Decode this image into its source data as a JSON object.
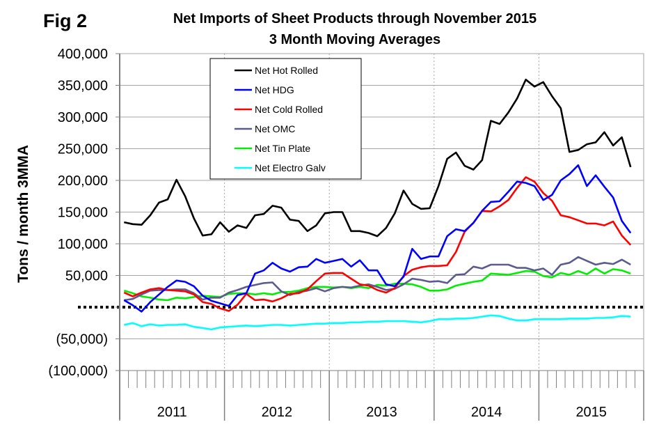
{
  "figure_label": "Fig 2",
  "chart_data": {
    "type": "line",
    "title": "Net Imports of Sheet Products through November 2015",
    "subtitle": "3 Month Moving Averages",
    "xlabel": "",
    "ylabel": "Tons / month 3MMA",
    "ylim": [
      -100000,
      400000
    ],
    "yticks": [
      400000,
      350000,
      300000,
      250000,
      200000,
      150000,
      100000,
      50000,
      0,
      -50000,
      -100000
    ],
    "ytick_labels": [
      "400,000",
      "350,000",
      "300,000",
      "250,000",
      "200,000",
      "150,000",
      "100,000",
      "50,000",
      "",
      "(50,000)",
      "(100,000)"
    ],
    "x_groups": [
      "2011",
      "2012",
      "2013",
      "2014",
      "2015"
    ],
    "x_start": "Jan 2011",
    "x_end": "Nov 2015",
    "months_per_group": 12,
    "grid": "horizontal solid, vertical dotted at year boundaries",
    "zero_line": "dotted",
    "legend_position": "top-left",
    "series": [
      {
        "name": "Net Hot Rolled",
        "color": "#000000",
        "values": [
          134000,
          131000,
          130000,
          145000,
          165000,
          170000,
          201000,
          175000,
          140000,
          113000,
          115000,
          134000,
          119000,
          129000,
          125000,
          145000,
          147000,
          160000,
          157000,
          138000,
          136000,
          120000,
          129000,
          148000,
          150000,
          150000,
          120000,
          120000,
          117000,
          112000,
          125000,
          148000,
          184000,
          163000,
          155000,
          156000,
          191000,
          234000,
          244000,
          223000,
          217000,
          232000,
          294000,
          289000,
          307000,
          329000,
          359000,
          348000,
          355000,
          333000,
          314000,
          245000,
          248000,
          257000,
          260000,
          276000,
          255000,
          268000,
          221000
        ]
      },
      {
        "name": "Net HDG",
        "color": "#0000ff",
        "values": [
          11000,
          3000,
          -7000,
          8000,
          20000,
          32000,
          42000,
          40000,
          33000,
          18000,
          10000,
          6000,
          2000,
          19000,
          22000,
          53000,
          58000,
          70000,
          61000,
          56000,
          63000,
          64000,
          76000,
          70000,
          73000,
          76000,
          64000,
          74000,
          58000,
          58000,
          36000,
          33000,
          48000,
          92000,
          76000,
          80000,
          80000,
          112000,
          123000,
          120000,
          133000,
          152000,
          166000,
          167000,
          182000,
          198000,
          196000,
          191000,
          169000,
          177000,
          200000,
          210000,
          224000,
          191000,
          208000,
          190000,
          173000,
          136000,
          117000
        ]
      },
      {
        "name": "Net Cold Rolled",
        "color": "#ff0000",
        "values": [
          23000,
          17000,
          23000,
          28000,
          30000,
          27000,
          26000,
          25000,
          20000,
          8000,
          5000,
          -2000,
          -6000,
          4000,
          21000,
          11000,
          12000,
          9000,
          14000,
          21000,
          22000,
          28000,
          41000,
          53000,
          54000,
          54000,
          45000,
          36000,
          34000,
          27000,
          23000,
          30000,
          49000,
          59000,
          63000,
          65000,
          65000,
          66000,
          87000,
          119000,
          133000,
          152000,
          151000,
          159000,
          169000,
          188000,
          205000,
          198000,
          180000,
          168000,
          145000,
          142000,
          137000,
          132000,
          132000,
          129000,
          135000,
          113000,
          98000
        ]
      },
      {
        "name": "Net OMC",
        "color": "#5b5b8f",
        "values": [
          11000,
          13000,
          20000,
          26000,
          27000,
          27000,
          28000,
          28000,
          22000,
          12000,
          15000,
          15000,
          23000,
          27000,
          32000,
          35000,
          38000,
          39000,
          25000,
          19000,
          24000,
          26000,
          30000,
          25000,
          30000,
          32000,
          31000,
          34000,
          36000,
          32000,
          27000,
          29000,
          36000,
          45000,
          43000,
          40000,
          41000,
          38000,
          51000,
          52000,
          64000,
          61000,
          67000,
          67000,
          67000,
          62000,
          62000,
          58000,
          61000,
          51000,
          67000,
          70000,
          79000,
          73000,
          67000,
          70000,
          68000,
          75000,
          67000
        ]
      },
      {
        "name": "Net Tin Plate",
        "color": "#00ee00",
        "values": [
          26000,
          22000,
          17000,
          15000,
          12000,
          11000,
          15000,
          14000,
          16000,
          18000,
          17000,
          16000,
          21000,
          22000,
          22000,
          20000,
          22000,
          20000,
          24000,
          24000,
          26000,
          30000,
          32000,
          32000,
          31000,
          32000,
          30000,
          32000,
          30000,
          35000,
          34000,
          37000,
          37000,
          36000,
          32000,
          26000,
          26000,
          28000,
          34000,
          37000,
          40000,
          42000,
          53000,
          52000,
          51000,
          54000,
          57000,
          56000,
          49000,
          47000,
          54000,
          51000,
          57000,
          52000,
          61000,
          53000,
          60000,
          58000,
          53000
        ]
      },
      {
        "name": "Net Electro Galv",
        "color": "#00ffff",
        "values": [
          -28000,
          -25000,
          -30000,
          -27000,
          -29000,
          -28000,
          -28000,
          -27000,
          -31000,
          -33000,
          -35000,
          -32000,
          -31000,
          -30000,
          -29000,
          -30000,
          -29000,
          -28000,
          -28000,
          -29000,
          -28000,
          -27000,
          -26000,
          -26000,
          -25000,
          -25000,
          -24000,
          -24000,
          -23000,
          -23000,
          -22000,
          -22000,
          -22000,
          -23000,
          -24000,
          -22000,
          -19000,
          -19000,
          -18000,
          -18000,
          -17000,
          -15000,
          -13000,
          -14000,
          -18000,
          -21000,
          -21000,
          -19000,
          -19000,
          -19000,
          -19000,
          -18000,
          -18000,
          -18000,
          -17000,
          -17000,
          -16000,
          -14000,
          -15000
        ]
      }
    ]
  }
}
